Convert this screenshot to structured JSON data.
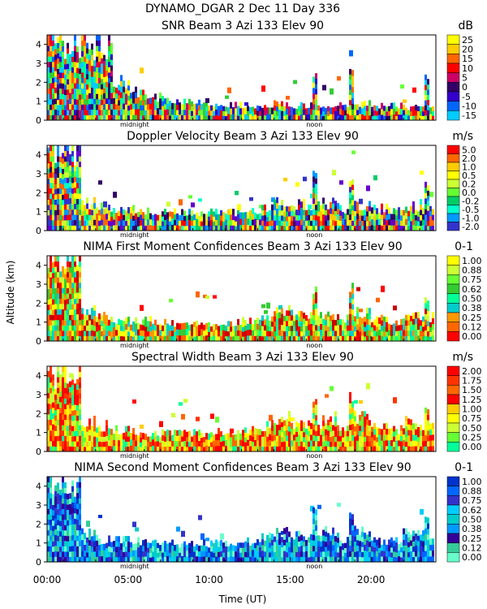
{
  "header": "DYNAMO_DGAR    2 Dec 11 Day 336",
  "xlabel": "Time (UT)",
  "ylabel": "Altitude (km)",
  "x_ticks": [
    "00:00",
    "05:00",
    "10:00",
    "15:00",
    "20:00"
  ],
  "x_markers": [
    "midnight",
    "noon"
  ],
  "chart_data": [
    {
      "type": "heatmap",
      "title": "SNR Beam 3 Azi 133 Elev 90",
      "unit": "dB",
      "xlabel": "",
      "ylabel": "",
      "xlim_hours": [
        0,
        24
      ],
      "ylim": [
        0,
        4.5
      ],
      "y_ticks": [
        "0",
        "1",
        "2",
        "3",
        "4"
      ],
      "colorbar": [
        "25",
        "20",
        "15",
        "10",
        "5",
        "0",
        "-5",
        "-10",
        "-15"
      ],
      "colors": [
        "#ffff00",
        "#ffcc00",
        "#ff6600",
        "#ff0000",
        "#cc0066",
        "#330066",
        "#3300cc",
        "#0066ff",
        "#00ccff",
        "#00ff99",
        "#33cc33",
        "#66ff33"
      ],
      "profile": [
        4.4,
        4.3,
        4.2,
        4.1,
        2.2,
        1.6,
        1.3,
        1.1,
        1.0,
        1.0,
        0.9,
        0.9,
        0.8,
        0.8,
        0.9,
        0.8,
        0.8,
        0.7,
        0.8,
        0.9,
        0.8,
        0.8,
        0.7,
        0.7
      ],
      "bursts": [
        [
          16.5,
          2.5
        ],
        [
          18.8,
          3.0
        ],
        [
          23.5,
          2.6
        ]
      ]
    },
    {
      "type": "heatmap",
      "title": "Doppler Velocity Beam 3 Azi 133 Elev 90",
      "unit": "m/s",
      "xlabel": "",
      "ylabel": "",
      "xlim_hours": [
        0,
        24
      ],
      "ylim": [
        0,
        4.5
      ],
      "y_ticks": [
        "0",
        "1",
        "2",
        "3",
        "4"
      ],
      "colorbar": [
        "5.0",
        "2.0",
        "1.0",
        "0.5",
        "0.2",
        "0.0",
        "-0.2",
        "-0.5",
        "-1.0",
        "-2.0"
      ],
      "colors": [
        "#ff0000",
        "#ff6600",
        "#ffcc00",
        "#ffff00",
        "#ccff33",
        "#66ff33",
        "#00cc66",
        "#00ffcc",
        "#0099ff",
        "#3333cc",
        "#6600cc",
        "#330066"
      ],
      "profile": [
        4.4,
        4.4,
        1.5,
        1.3,
        1.2,
        1.2,
        1.1,
        1.1,
        1.0,
        1.0,
        1.0,
        1.0,
        1.0,
        1.2,
        1.6,
        1.4,
        1.3,
        1.5,
        1.2,
        1.4,
        1.2,
        1.1,
        1.3,
        1.4
      ],
      "bursts": [
        [
          16.5,
          3.2
        ],
        [
          18.8,
          3.1
        ],
        [
          23.5,
          2.6
        ]
      ]
    },
    {
      "type": "heatmap",
      "title": "NIMA First Moment Confidences Beam 3 Azi 133 Elev 90",
      "unit": "0-1",
      "xlabel": "",
      "ylabel": "",
      "xlim_hours": [
        0,
        24
      ],
      "ylim": [
        0,
        4.5
      ],
      "y_ticks": [
        "0",
        "1",
        "2",
        "3",
        "4"
      ],
      "colorbar": [
        "1.00",
        "0.88",
        "0.75",
        "0.62",
        "0.50",
        "0.38",
        "0.25",
        "0.12",
        "0.00"
      ],
      "colors": [
        "#ffff00",
        "#ccff33",
        "#66ff33",
        "#33cc33",
        "#00ff99",
        "#00cccc",
        "#ff9900",
        "#ff6600",
        "#ff0000",
        "#cc0000"
      ],
      "profile": [
        4.4,
        4.4,
        1.6,
        1.3,
        1.2,
        1.1,
        1.1,
        1.0,
        1.0,
        1.0,
        1.0,
        1.0,
        1.1,
        1.4,
        1.7,
        1.5,
        1.3,
        1.4,
        1.3,
        1.5,
        1.2,
        1.1,
        1.3,
        1.3
      ],
      "bursts": [
        [
          16.5,
          3.0
        ],
        [
          18.8,
          3.2
        ],
        [
          23.5,
          2.6
        ]
      ]
    },
    {
      "type": "heatmap",
      "title": "Spectral Width Beam 3 Azi 133 Elev 90",
      "unit": "m/s",
      "xlabel": "",
      "ylabel": "",
      "xlim_hours": [
        0,
        24
      ],
      "ylim": [
        0,
        4.5
      ],
      "y_ticks": [
        "0",
        "1",
        "2",
        "3",
        "4"
      ],
      "colorbar": [
        "2.00",
        "1.75",
        "1.50",
        "1.25",
        "1.00",
        "0.75",
        "0.50",
        "0.25",
        "0.00"
      ],
      "colors": [
        "#ff0000",
        "#ff3300",
        "#ff6600",
        "#ff0000",
        "#ffcc00",
        "#ffff00",
        "#ccff33",
        "#66ff33",
        "#00ff99"
      ],
      "profile": [
        4.4,
        4.4,
        1.7,
        1.4,
        1.2,
        1.1,
        1.0,
        1.0,
        1.0,
        1.0,
        1.1,
        1.1,
        1.2,
        1.4,
        1.8,
        1.6,
        1.4,
        1.8,
        1.4,
        1.8,
        1.3,
        1.2,
        1.6,
        1.5
      ],
      "bursts": [
        [
          16.5,
          3.1
        ],
        [
          18.8,
          3.2
        ],
        [
          23.5,
          2.6
        ]
      ]
    },
    {
      "type": "heatmap",
      "title": "NIMA Second Moment Confidences Beam 3 Azi 133 Elev 90",
      "unit": "0-1",
      "xlabel": "",
      "ylabel": "",
      "xlim_hours": [
        0,
        24
      ],
      "ylim": [
        0,
        4.5
      ],
      "y_ticks": [
        "0",
        "1",
        "2",
        "3",
        "4"
      ],
      "colorbar": [
        "1.00",
        "0.88",
        "0.75",
        "0.62",
        "0.50",
        "0.38",
        "0.25",
        "0.12",
        "0.00"
      ],
      "colors": [
        "#0033cc",
        "#0066ff",
        "#3333cc",
        "#00ccff",
        "#00cccc",
        "#0099ff",
        "#330099",
        "#33cc99",
        "#66ffcc"
      ],
      "profile": [
        4.4,
        4.4,
        1.5,
        1.2,
        1.2,
        1.1,
        1.1,
        1.0,
        1.0,
        1.0,
        1.0,
        1.0,
        1.1,
        1.3,
        1.6,
        1.4,
        1.3,
        1.6,
        1.3,
        1.7,
        1.2,
        1.1,
        1.5,
        1.4
      ],
      "bursts": [
        [
          16.5,
          3.2
        ],
        [
          18.8,
          3.1
        ],
        [
          23.5,
          2.6
        ]
      ]
    }
  ]
}
